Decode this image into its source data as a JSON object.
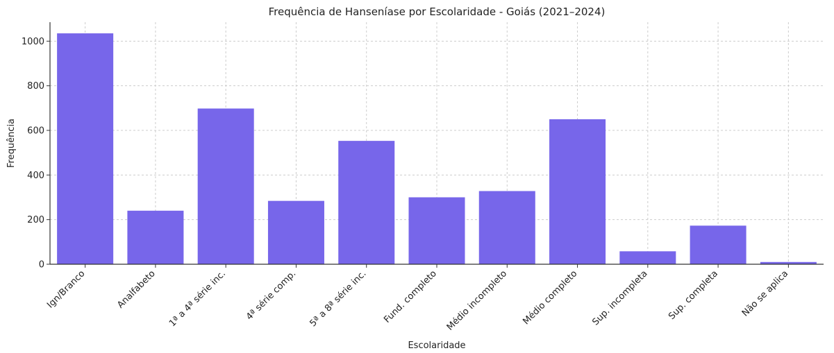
{
  "chart_data": {
    "type": "bar",
    "title": "Frequência de Hanseníase por Escolaridade - Goiás (2021–2024)",
    "xlabel": "Escolaridade",
    "ylabel": "Frequência",
    "categories": [
      "Ign/Branco",
      "Analfabeto",
      "1ª a 4ª série inc.",
      "4ª série comp.",
      "5ª a 8ª série inc.",
      "Fund. completo",
      "Médio incompleto",
      "Médio completo",
      "Sup. incompleta",
      "Sup. completa",
      "Não se aplica"
    ],
    "values": [
      1035,
      240,
      698,
      284,
      553,
      300,
      328,
      650,
      58,
      173,
      10
    ],
    "ylim": [
      0,
      1085
    ],
    "yticks": [
      0,
      200,
      400,
      600,
      800,
      1000
    ],
    "grid": true,
    "bar_color": "#7766EA"
  }
}
